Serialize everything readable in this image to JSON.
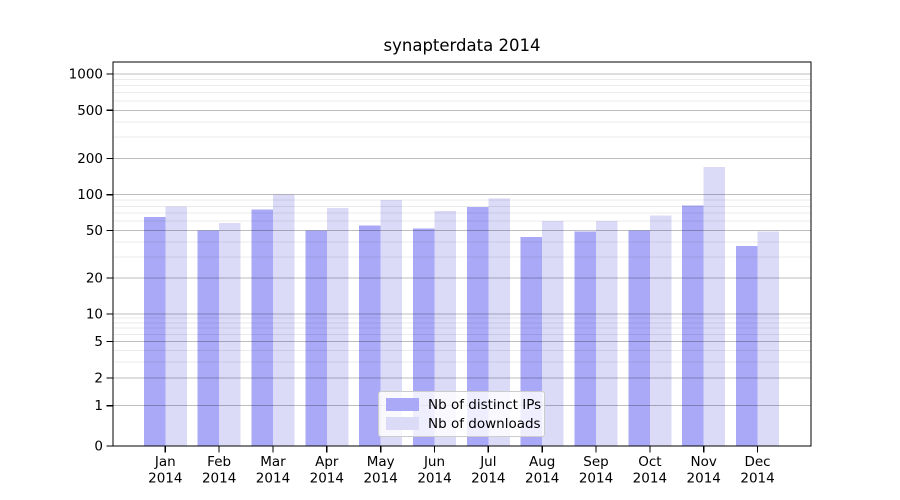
{
  "title": "synapterdata 2014",
  "chart_data": {
    "type": "bar",
    "title": "synapterdata 2014",
    "xlabel": "",
    "ylabel": "",
    "y_scale": "symlog",
    "ylim": [
      0,
      1000
    ],
    "y_ticks": [
      0,
      1,
      2,
      5,
      10,
      20,
      50,
      100,
      200,
      500,
      1000
    ],
    "grid": "horizontal major and minor gridlines",
    "legend_position": "bottom-center-inside",
    "categories": [
      "Jan 2014",
      "Feb 2014",
      "Mar 2014",
      "Apr 2014",
      "May 2014",
      "Jun 2014",
      "Jul 2014",
      "Aug 2014",
      "Sep 2014",
      "Oct 2014",
      "Nov 2014",
      "Dec 2014"
    ],
    "series": [
      {
        "name": "Nb of distinct IPs",
        "color": "#a9a9f7",
        "values": [
          65,
          50,
          75,
          50,
          55,
          52,
          79,
          44,
          49,
          50,
          81,
          37
        ]
      },
      {
        "name": "Nb of downloads",
        "color": "#dbdbf8",
        "values": [
          80,
          58,
          100,
          77,
          90,
          73,
          93,
          60,
          60,
          67,
          170,
          49
        ]
      }
    ]
  }
}
